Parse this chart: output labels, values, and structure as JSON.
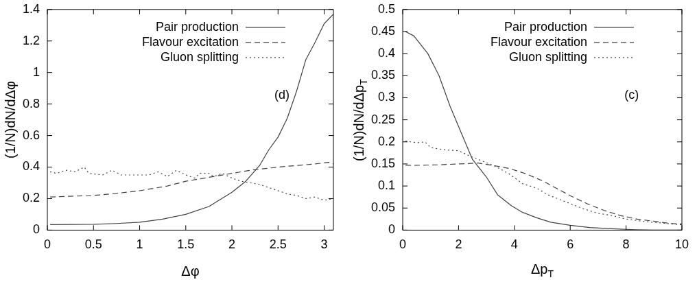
{
  "chart_data": [
    {
      "type": "line",
      "xlabel": "Δφ",
      "ylabel": "(1/N)dN/dΔφ",
      "annotations": [
        "(d)"
      ],
      "legend": "top right",
      "grid": false,
      "marker": "none",
      "xlim": [
        0,
        3.1
      ],
      "xticks": [
        0,
        0.5,
        1,
        1.5,
        2,
        2.5,
        3
      ],
      "ylim": [
        0,
        1.4
      ],
      "yticks": [
        0,
        0.2,
        0.4,
        0.6,
        0.8,
        1,
        1.2,
        1.4
      ],
      "series": [
        {
          "name": "Pair production",
          "color": "#404040",
          "line_style": "solid",
          "x": [
            0.03,
            0.5,
            0.75,
            1.0,
            1.25,
            1.5,
            1.75,
            2.0,
            2.15,
            2.3,
            2.4,
            2.5,
            2.6,
            2.7,
            2.8,
            2.9,
            3.0,
            3.1
          ],
          "values": [
            0.035,
            0.037,
            0.042,
            0.05,
            0.07,
            0.1,
            0.15,
            0.24,
            0.31,
            0.41,
            0.51,
            0.59,
            0.71,
            0.88,
            1.08,
            1.19,
            1.31,
            1.37
          ]
        },
        {
          "name": "Flavour excitation",
          "color": "#404040",
          "line_style": "dashed",
          "x": [
            0.03,
            0.5,
            0.7,
            1.0,
            1.3,
            1.5,
            1.7,
            2.0,
            2.2,
            2.5,
            2.7,
            2.9,
            3.05,
            3.1
          ],
          "values": [
            0.21,
            0.22,
            0.23,
            0.25,
            0.28,
            0.31,
            0.33,
            0.36,
            0.38,
            0.4,
            0.41,
            0.42,
            0.43,
            0.42
          ]
        },
        {
          "name": "Gluon splitting",
          "color": "#404040",
          "line_style": "dotted",
          "x": [
            0.03,
            0.1,
            0.2,
            0.3,
            0.4,
            0.45,
            0.6,
            0.7,
            0.8,
            1.0,
            1.1,
            1.2,
            1.3,
            1.4,
            1.5,
            1.6,
            1.65,
            1.75,
            1.8,
            1.9,
            2.0,
            2.1,
            2.3,
            2.4,
            2.6,
            2.7,
            2.8,
            2.9,
            3.0,
            3.1
          ],
          "values": [
            0.37,
            0.36,
            0.38,
            0.37,
            0.4,
            0.36,
            0.35,
            0.38,
            0.35,
            0.35,
            0.35,
            0.37,
            0.34,
            0.38,
            0.35,
            0.33,
            0.36,
            0.36,
            0.34,
            0.36,
            0.33,
            0.31,
            0.29,
            0.27,
            0.23,
            0.22,
            0.2,
            0.21,
            0.19,
            0.2
          ]
        }
      ]
    },
    {
      "type": "line",
      "xlabel": "Δp$_{T}$",
      "ylabel": "(1/N)dN/dΔp$_{T}$",
      "annotations": [
        "(c)"
      ],
      "legend": "top right",
      "grid": false,
      "marker": "none",
      "xlim": [
        0,
        10
      ],
      "xticks": [
        0,
        2,
        4,
        6,
        8,
        10
      ],
      "ylim": [
        0,
        0.5
      ],
      "yticks": [
        0,
        0.05,
        0.1,
        0.15,
        0.2,
        0.25,
        0.3,
        0.35,
        0.4,
        0.45,
        0.5
      ],
      "series": [
        {
          "name": "Pair production",
          "color": "#404040",
          "line_style": "solid",
          "x": [
            0.1,
            0.4,
            0.9,
            1.3,
            1.7,
            2.1,
            2.5,
            3.0,
            3.4,
            3.9,
            4.3,
            4.8,
            5.3,
            6.0,
            6.7,
            7.5,
            8.3,
            9.0,
            10
          ],
          "values": [
            0.45,
            0.44,
            0.4,
            0.35,
            0.28,
            0.22,
            0.16,
            0.12,
            0.08,
            0.055,
            0.04,
            0.028,
            0.018,
            0.011,
            0.006,
            0.003,
            0.001,
            0,
            0
          ]
        },
        {
          "name": "Flavour excitation",
          "color": "#404040",
          "line_style": "dashed",
          "x": [
            0.1,
            0.5,
            1.3,
            2.0,
            2.7,
            3.2,
            3.8,
            4.4,
            5.0,
            5.5,
            6.0,
            6.6,
            7.2,
            7.8,
            8.4,
            9.0,
            9.6,
            10
          ],
          "values": [
            0.147,
            0.147,
            0.148,
            0.15,
            0.152,
            0.147,
            0.14,
            0.128,
            0.112,
            0.095,
            0.078,
            0.06,
            0.045,
            0.033,
            0.025,
            0.02,
            0.015,
            0.014
          ]
        },
        {
          "name": "Gluon splitting",
          "color": "#404040",
          "line_style": "dotted",
          "x": [
            0.1,
            0.5,
            0.8,
            1.0,
            1.5,
            2.0,
            2.4,
            2.8,
            3.3,
            3.8,
            4.3,
            4.8,
            5.2,
            5.8,
            6.4,
            7.0,
            7.5,
            8.0,
            8.6,
            9.3,
            10
          ],
          "values": [
            0.202,
            0.198,
            0.2,
            0.187,
            0.182,
            0.18,
            0.168,
            0.158,
            0.145,
            0.128,
            0.105,
            0.095,
            0.08,
            0.065,
            0.05,
            0.038,
            0.033,
            0.025,
            0.02,
            0.016,
            0.012
          ]
        }
      ]
    }
  ]
}
